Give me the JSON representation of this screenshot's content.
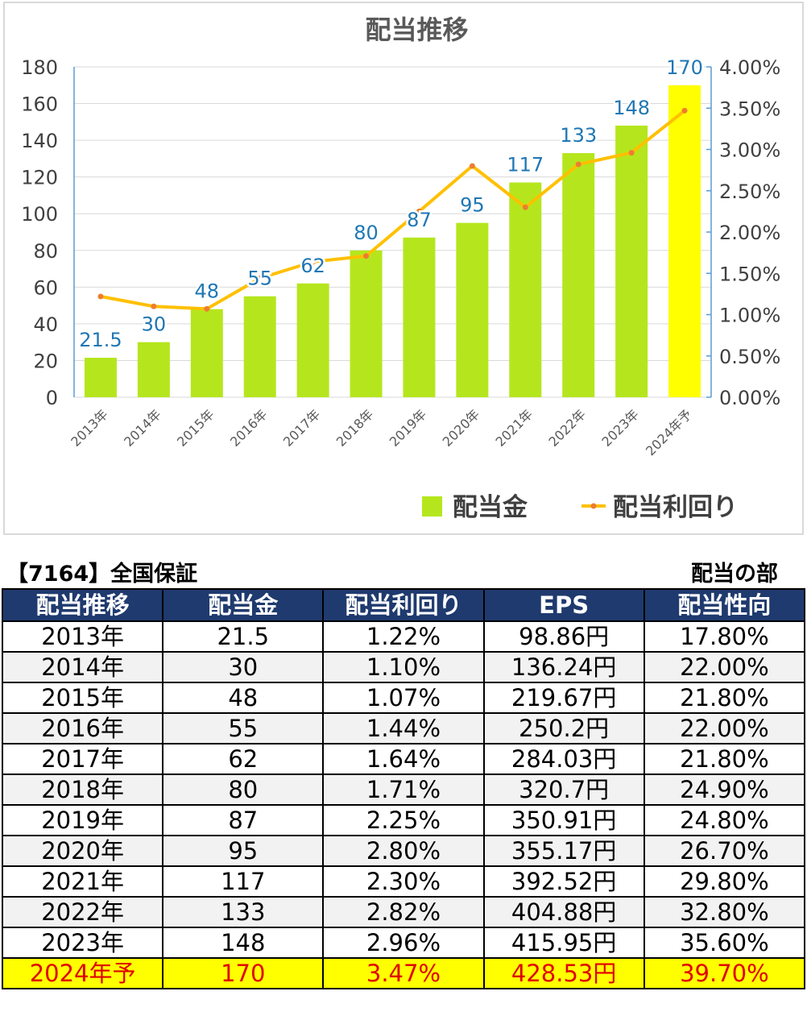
{
  "chart_data": {
    "type": "bar+line",
    "title": "配当推移",
    "categories": [
      "2013年",
      "2014年",
      "2015年",
      "2016年",
      "2017年",
      "2018年",
      "2019年",
      "2020年",
      "2021年",
      "2022年",
      "2023年",
      "2024年予"
    ],
    "series": [
      {
        "name": "配当金",
        "type": "bar",
        "axis": "left",
        "color": "#b5e61d",
        "highlight_last_color": "#ffff00",
        "values": [
          21.5,
          30,
          48,
          55,
          62,
          80,
          87,
          95,
          117,
          133,
          148,
          170
        ],
        "labels": [
          "21.5",
          "30",
          "48",
          "55",
          "62",
          "80",
          "87",
          "95",
          "117",
          "133",
          "148",
          "170"
        ]
      },
      {
        "name": "配当利回り",
        "type": "line",
        "axis": "right",
        "color": "#ffc000",
        "marker_color": "#ed7d31",
        "values": [
          1.22,
          1.1,
          1.07,
          1.44,
          1.64,
          1.71,
          2.25,
          2.8,
          2.3,
          2.82,
          2.96,
          3.47
        ]
      }
    ],
    "left_axis": {
      "ylim": [
        0,
        180
      ],
      "ticks": [
        "0",
        "20",
        "40",
        "60",
        "80",
        "100",
        "120",
        "140",
        "160",
        "180"
      ]
    },
    "right_axis": {
      "ylim": [
        0,
        4
      ],
      "ticks": [
        "0.00%",
        "0.50%",
        "1.00%",
        "1.50%",
        "2.00%",
        "2.50%",
        "3.00%",
        "3.50%",
        "4.00%"
      ]
    },
    "grid": true,
    "legend": "bottom-right",
    "label_color": "#1f77b4"
  },
  "table": {
    "title_left": "【7164】全国保証",
    "title_right": "配当の部",
    "headers": [
      "配当推移",
      "配当金",
      "配当利回り",
      "EPS",
      "配当性向"
    ],
    "rows": [
      [
        "2013年",
        "21.5",
        "1.22%",
        "98.86円",
        "17.80%"
      ],
      [
        "2014年",
        "30",
        "1.10%",
        "136.24円",
        "22.00%"
      ],
      [
        "2015年",
        "48",
        "1.07%",
        "219.67円",
        "21.80%"
      ],
      [
        "2016年",
        "55",
        "1.44%",
        "250.2円",
        "22.00%"
      ],
      [
        "2017年",
        "62",
        "1.64%",
        "284.03円",
        "21.80%"
      ],
      [
        "2018年",
        "80",
        "1.71%",
        "320.7円",
        "24.90%"
      ],
      [
        "2019年",
        "87",
        "2.25%",
        "350.91円",
        "24.80%"
      ],
      [
        "2020年",
        "95",
        "2.80%",
        "355.17円",
        "26.70%"
      ],
      [
        "2021年",
        "117",
        "2.30%",
        "392.52円",
        "29.80%"
      ],
      [
        "2022年",
        "133",
        "2.82%",
        "404.88円",
        "32.80%"
      ],
      [
        "2023年",
        "148",
        "2.96%",
        "415.95円",
        "35.60%"
      ],
      [
        "2024年予",
        "170",
        "3.47%",
        "428.53円",
        "39.70%"
      ]
    ],
    "header_bg": "#1f3a6e",
    "forecast_bg": "#ffff00",
    "forecast_text": "#e00000"
  }
}
